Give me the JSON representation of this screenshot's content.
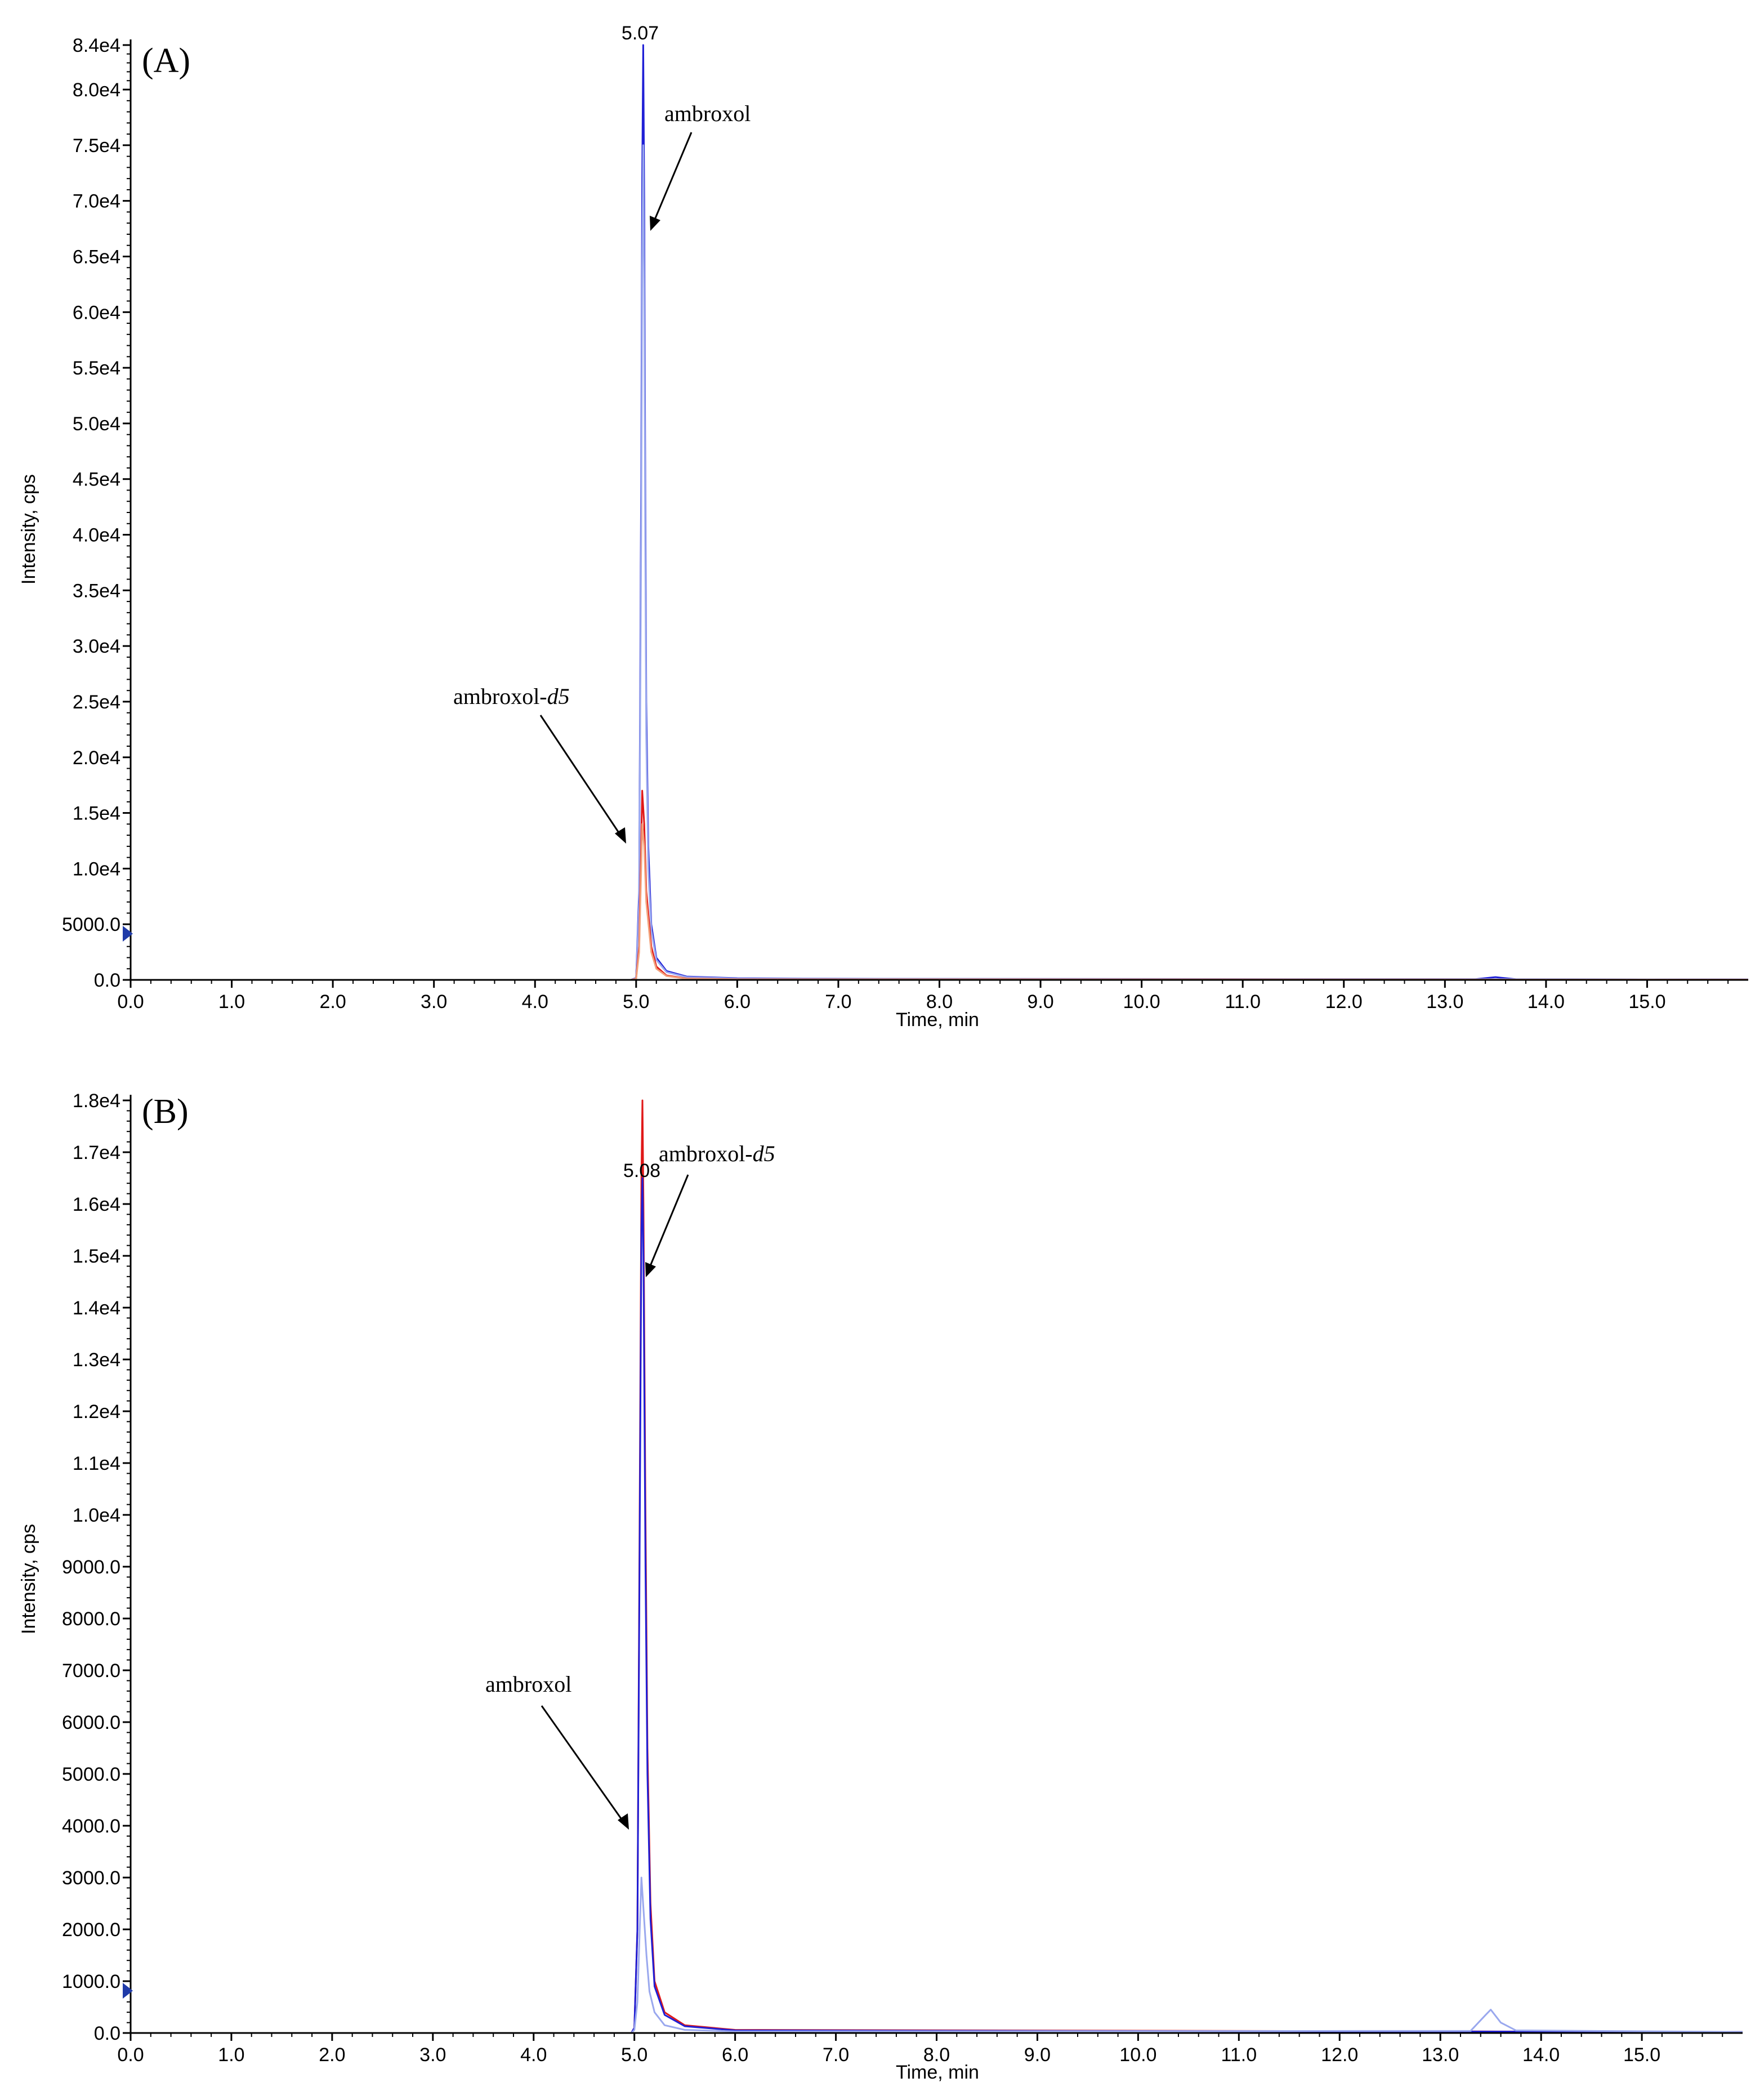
{
  "chart_data": [
    {
      "type": "line",
      "panel_label": "(A)",
      "xlabel": "Time, min",
      "ylabel": "Intensity, cps",
      "xlim": [
        0.0,
        16.0
      ],
      "ylim": [
        0,
        84000
      ],
      "x_ticks": [
        "0.0",
        "1.0",
        "2.0",
        "3.0",
        "4.0",
        "5.0",
        "6.0",
        "7.0",
        "8.0",
        "9.0",
        "10.0",
        "11.0",
        "12.0",
        "13.0",
        "14.0",
        "15.0"
      ],
      "y_ticks": [
        "0.0",
        "5000.0",
        "1.0e4",
        "1.5e4",
        "2.0e4",
        "2.5e4",
        "3.0e4",
        "3.5e4",
        "4.0e4",
        "4.5e4",
        "5.0e4",
        "5.5e4",
        "6.0e4",
        "6.5e4",
        "7.0e4",
        "7.5e4",
        "8.0e4",
        "8.4e4"
      ],
      "peak_label": "5.07",
      "annotations": {
        "analyte": {
          "prefix": "ambroxol",
          "italic": ""
        },
        "internal_standard": {
          "prefix": "ambroxol-",
          "italic": "d5"
        }
      },
      "series": [
        {
          "color": "#1f1fd6",
          "x": [
            0.0,
            4.95,
            5.0,
            5.03,
            5.05,
            5.06,
            5.07,
            5.08,
            5.09,
            5.1,
            5.12,
            5.15,
            5.2,
            5.3,
            5.5,
            6.0,
            8.0,
            13.3,
            13.5,
            13.7,
            16.0
          ],
          "y": [
            0,
            0,
            200,
            8000,
            45000,
            72000,
            84000,
            70000,
            45000,
            25000,
            12000,
            5000,
            2000,
            800,
            300,
            150,
            80,
            60,
            250,
            60,
            40
          ]
        },
        {
          "color": "#9aa8ee",
          "x": [
            0.0,
            4.95,
            5.0,
            5.03,
            5.05,
            5.06,
            5.07,
            5.08,
            5.09,
            5.1,
            5.12,
            5.15,
            5.2,
            5.3,
            5.5,
            6.0,
            16.0
          ],
          "y": [
            0,
            0,
            200,
            7000,
            40000,
            64000,
            75000,
            62000,
            40000,
            22000,
            10000,
            4500,
            1800,
            700,
            250,
            120,
            40
          ]
        },
        {
          "color": "#e01818",
          "x": [
            0.0,
            4.95,
            5.0,
            5.03,
            5.05,
            5.06,
            5.08,
            5.1,
            5.15,
            5.2,
            5.3,
            5.5,
            6.0,
            16.0
          ],
          "y": [
            0,
            0,
            100,
            3000,
            12000,
            17000,
            14000,
            8000,
            3000,
            1200,
            400,
            120,
            50,
            20
          ]
        },
        {
          "color": "#f2a07a",
          "x": [
            0.0,
            4.95,
            5.0,
            5.03,
            5.05,
            5.06,
            5.08,
            5.1,
            5.15,
            5.2,
            5.3,
            5.5,
            6.0,
            16.0
          ],
          "y": [
            0,
            0,
            80,
            2500,
            10000,
            14000,
            12000,
            7000,
            2500,
            1000,
            350,
            100,
            40,
            20
          ]
        }
      ]
    },
    {
      "type": "line",
      "panel_label": "(B)",
      "xlabel": "Time, min",
      "ylabel": "Intensity, cps",
      "xlim": [
        0.0,
        16.0
      ],
      "ylim": [
        0,
        18000
      ],
      "x_ticks": [
        "0.0",
        "1.0",
        "2.0",
        "3.0",
        "4.0",
        "5.0",
        "6.0",
        "7.0",
        "8.0",
        "9.0",
        "10.0",
        "11.0",
        "12.0",
        "13.0",
        "14.0",
        "15.0"
      ],
      "y_ticks": [
        "0.0",
        "1000.0",
        "2000.0",
        "3000.0",
        "4000.0",
        "5000.0",
        "6000.0",
        "7000.0",
        "8000.0",
        "9000.0",
        "1.0e4",
        "1.1e4",
        "1.2e4",
        "1.3e4",
        "1.4e4",
        "1.5e4",
        "1.6e4",
        "1.7e4",
        "1.8e4"
      ],
      "peak_label": "5.08",
      "annotations": {
        "analyte": {
          "prefix": "ambroxol",
          "italic": ""
        },
        "internal_standard": {
          "prefix": "ambroxol-",
          "italic": "d5"
        }
      },
      "series": [
        {
          "color": "#e01818",
          "x": [
            0.0,
            4.97,
            5.0,
            5.03,
            5.05,
            5.07,
            5.08,
            5.09,
            5.11,
            5.13,
            5.16,
            5.2,
            5.3,
            5.5,
            6.0,
            16.0
          ],
          "y": [
            0,
            0,
            100,
            2000,
            9000,
            16500,
            18000,
            16000,
            10000,
            5500,
            2500,
            1000,
            400,
            150,
            60,
            20
          ]
        },
        {
          "color": "#1f1fd6",
          "x": [
            0.0,
            4.97,
            5.0,
            5.03,
            5.05,
            5.07,
            5.08,
            5.09,
            5.11,
            5.13,
            5.16,
            5.2,
            5.3,
            5.5,
            6.0,
            16.0
          ],
          "y": [
            0,
            0,
            100,
            2000,
            8500,
            15500,
            16500,
            15000,
            9000,
            5000,
            2200,
            900,
            350,
            130,
            50,
            20
          ]
        },
        {
          "color": "#9aa8ee",
          "x": [
            0.0,
            4.97,
            5.0,
            5.03,
            5.05,
            5.07,
            5.09,
            5.12,
            5.15,
            5.2,
            5.3,
            5.5,
            6.0,
            13.3,
            13.45,
            13.5,
            13.6,
            13.75,
            16.0
          ],
          "y": [
            0,
            0,
            60,
            600,
            1800,
            3000,
            2400,
            1500,
            800,
            400,
            150,
            60,
            30,
            40,
            350,
            450,
            200,
            50,
            20
          ]
        }
      ]
    }
  ]
}
